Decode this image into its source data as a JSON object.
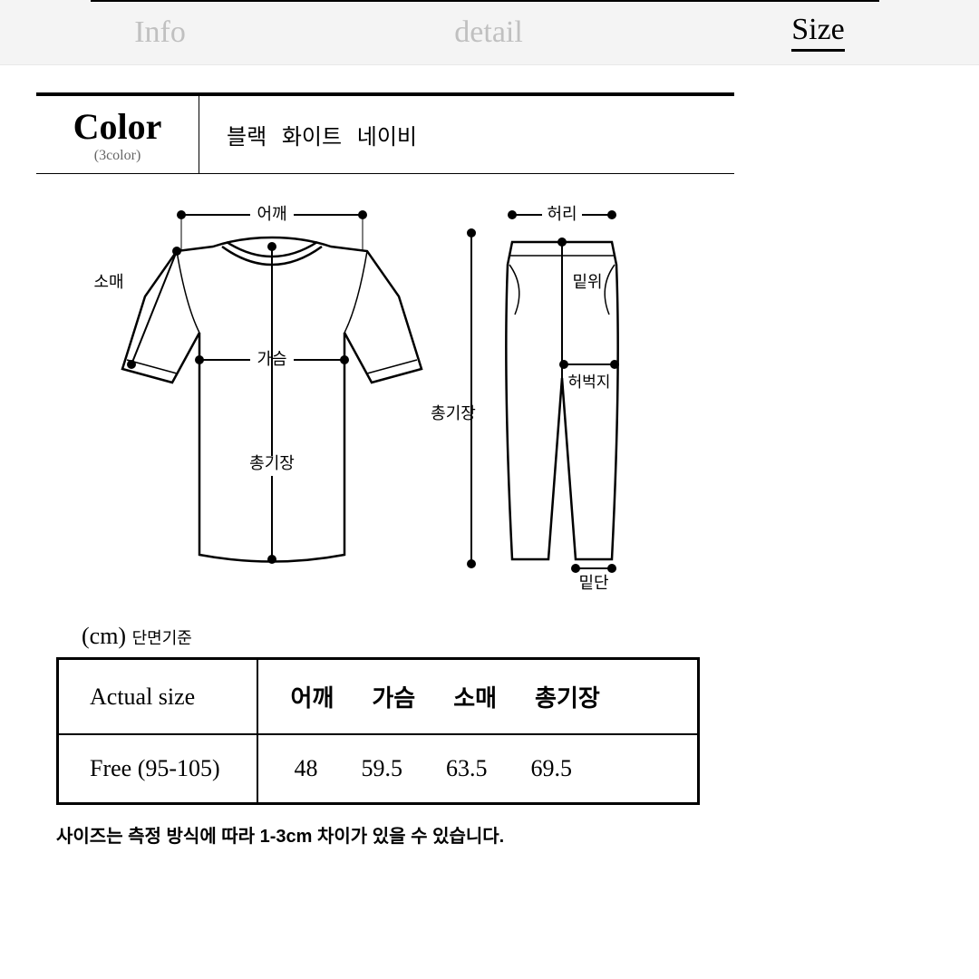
{
  "tabs": {
    "info": "Info",
    "detail": "detail",
    "size": "Size",
    "active": "size"
  },
  "color_section": {
    "title": "Color",
    "subtitle": "(3color)",
    "values": "블랙  화이트  네이비"
  },
  "diagram": {
    "shirt": {
      "shoulder": "어깨",
      "sleeve": "소매",
      "chest": "가슴",
      "length": "총기장"
    },
    "pants": {
      "waist": "허리",
      "rise": "밑위",
      "thigh": "허벅지",
      "length": "총기장",
      "hem": "밑단"
    },
    "stroke": "#000000",
    "dot_radius": 5
  },
  "size_table": {
    "unit": "(cm)",
    "unit_note": "단면기준",
    "row_header_label": "Actual size",
    "columns": [
      "어깨",
      "가슴",
      "소매",
      "총기장"
    ],
    "rows": [
      {
        "label": "Free (95-105)",
        "values": [
          "48",
          "59.5",
          "63.5",
          "69.5"
        ]
      }
    ]
  },
  "footnote": "사이즈는 측정 방식에 따라 1-3cm 차이가 있을 수 있습니다."
}
